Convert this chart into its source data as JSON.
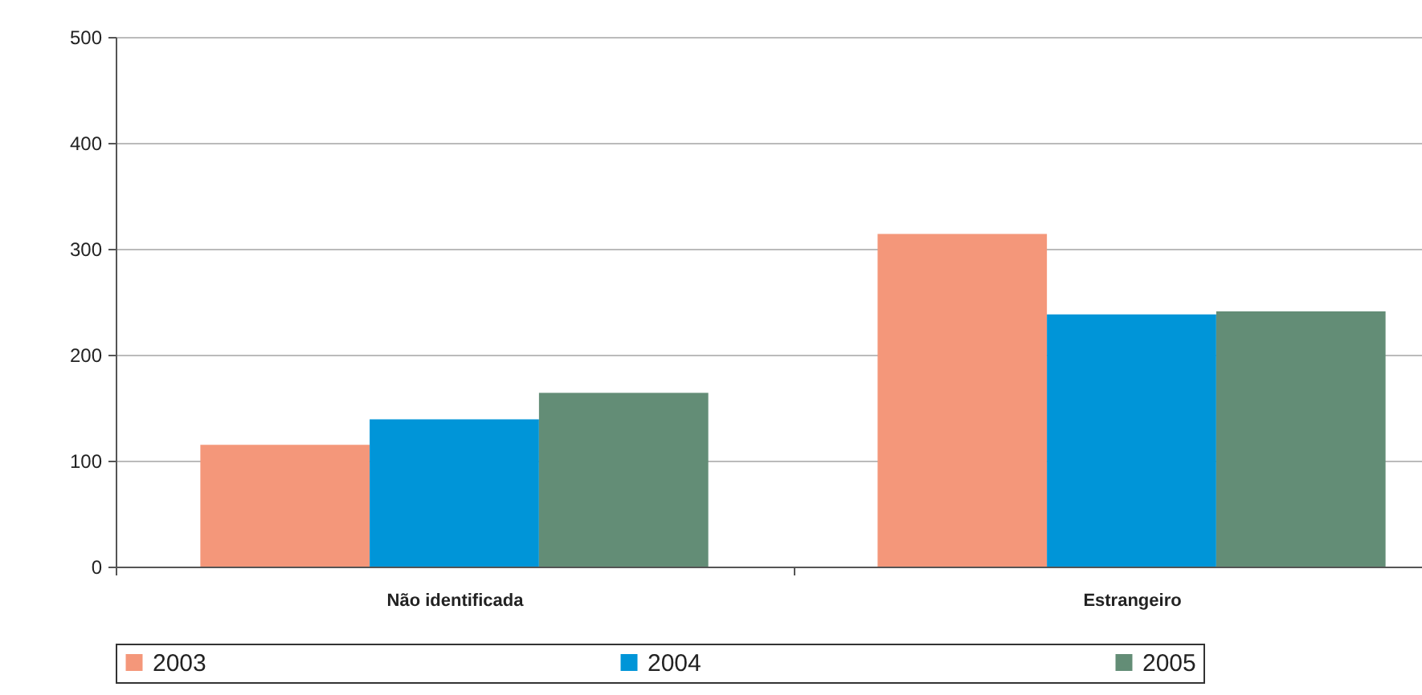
{
  "chart_data": {
    "type": "bar",
    "categories": [
      "Não identificada",
      "Estrangeiro"
    ],
    "series": [
      {
        "name": "2003",
        "color": "#f4977a",
        "values": [
          115,
          314
        ]
      },
      {
        "name": "2004",
        "color": "#0095d8",
        "values": [
          139,
          238
        ]
      },
      {
        "name": "2005",
        "color": "#638d76",
        "values": [
          164,
          241
        ]
      }
    ],
    "ylim": [
      0,
      500
    ],
    "yticks": [
      0,
      100,
      200,
      300,
      400,
      500
    ],
    "grid": "y",
    "legend": "bottom"
  }
}
